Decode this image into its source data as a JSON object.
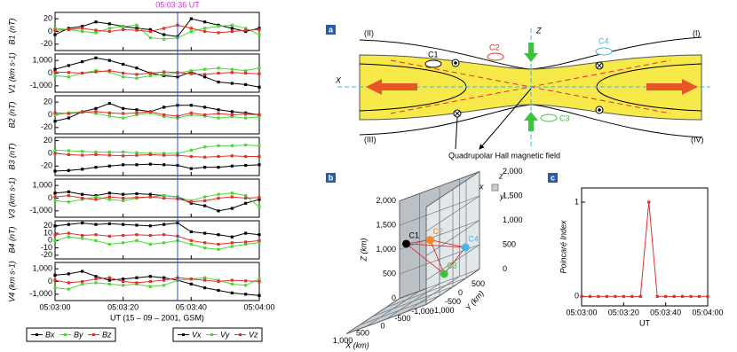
{
  "chart_data": [
    {
      "type": "line",
      "ylabel": "B1 (nT)",
      "x": [
        "05:03:00",
        "05:03:04",
        "05:03:08",
        "05:03:12",
        "05:03:16",
        "05:03:20",
        "05:03:24",
        "05:03:28",
        "05:03:32",
        "05:03:36",
        "05:03:40",
        "05:03:44",
        "05:03:48",
        "05:03:52",
        "05:03:56",
        "05:04:00"
      ],
      "xlim": [
        "05:03:00",
        "05:04:00"
      ],
      "ylim": [
        -30,
        30
      ],
      "yticks": [
        -20,
        0,
        20
      ],
      "marker": {
        "x": "05:03:36",
        "label": "05:03:36 UT",
        "label_color": "#d62fd6",
        "line_color": "#2a4bd7"
      },
      "series": [
        {
          "name": "Bx",
          "color": "#000000",
          "values": [
            -5,
            5,
            8,
            15,
            12,
            8,
            5,
            3,
            -5,
            -8,
            20,
            15,
            10,
            5,
            0,
            5
          ]
        },
        {
          "name": "By",
          "color": "#4fd43a",
          "values": [
            5,
            3,
            0,
            -2,
            5,
            8,
            10,
            -10,
            -12,
            -10,
            0,
            5,
            8,
            10,
            5,
            -5
          ]
        },
        {
          "name": "Bz",
          "color": "#e0302a",
          "values": [
            2,
            3,
            5,
            2,
            0,
            3,
            2,
            0,
            5,
            10,
            5,
            0,
            -2,
            0,
            2,
            3
          ]
        }
      ]
    },
    {
      "type": "line",
      "ylabel": "V1 (km s-1)",
      "x": [
        "05:03:00",
        "05:03:04",
        "05:03:08",
        "05:03:12",
        "05:03:16",
        "05:03:20",
        "05:03:24",
        "05:03:28",
        "05:03:32",
        "05:03:36",
        "05:03:40",
        "05:03:44",
        "05:03:48",
        "05:03:52",
        "05:03:56",
        "05:04:00"
      ],
      "xlim": [
        "05:03:00",
        "05:04:00"
      ],
      "ylim": [
        -1500,
        1500
      ],
      "yticks": [
        {
          "value": -1000,
          "label": "-1,000"
        },
        0,
        {
          "value": 1000,
          "label": "1,000"
        }
      ],
      "series": [
        {
          "name": "Vx",
          "color": "#000000",
          "values": [
            300,
            600,
            900,
            1200,
            1000,
            700,
            400,
            0,
            -200,
            -300,
            100,
            -300,
            -700,
            -800,
            -900,
            -1100
          ]
        },
        {
          "name": "Vy",
          "color": "#4fd43a",
          "values": [
            -200,
            -300,
            0,
            200,
            100,
            -300,
            -400,
            -200,
            -100,
            0,
            200,
            300,
            400,
            300,
            200,
            400
          ]
        },
        {
          "name": "Vz",
          "color": "#e0302a",
          "values": [
            100,
            50,
            0,
            100,
            200,
            0,
            -100,
            0,
            100,
            50,
            -50,
            -100,
            0,
            50,
            0,
            -50
          ]
        }
      ]
    },
    {
      "type": "line",
      "ylabel": "B2 (nT)",
      "x": [
        "05:03:00",
        "05:03:04",
        "05:03:08",
        "05:03:12",
        "05:03:16",
        "05:03:20",
        "05:03:24",
        "05:03:28",
        "05:03:32",
        "05:03:36",
        "05:03:40",
        "05:03:44",
        "05:03:48",
        "05:03:52",
        "05:03:56",
        "05:04:00"
      ],
      "xlim": [
        "05:03:00",
        "05:04:00"
      ],
      "ylim": [
        -30,
        30
      ],
      "yticks": [
        -20,
        0,
        20
      ],
      "series": [
        {
          "name": "Bx",
          "color": "#000000",
          "values": [
            -10,
            -5,
            5,
            10,
            18,
            10,
            8,
            5,
            12,
            15,
            15,
            12,
            8,
            5,
            3,
            0
          ]
        },
        {
          "name": "By",
          "color": "#4fd43a",
          "values": [
            0,
            3,
            5,
            2,
            -2,
            -5,
            0,
            3,
            -3,
            -5,
            0,
            -2,
            -5,
            -3,
            -5,
            -3
          ]
        },
        {
          "name": "Bz",
          "color": "#e0302a",
          "values": [
            3,
            2,
            4,
            5,
            3,
            2,
            3,
            5,
            0,
            -2,
            3,
            0,
            2,
            0,
            1,
            0
          ]
        }
      ]
    },
    {
      "type": "line",
      "ylabel": "B3 (nT)",
      "x": [
        "05:03:00",
        "05:03:04",
        "05:03:08",
        "05:03:12",
        "05:03:16",
        "05:03:20",
        "05:03:24",
        "05:03:28",
        "05:03:32",
        "05:03:36",
        "05:03:40",
        "05:03:44",
        "05:03:48",
        "05:03:52",
        "05:03:56",
        "05:04:00"
      ],
      "xlim": [
        "05:03:00",
        "05:04:00"
      ],
      "ylim": [
        -35,
        25
      ],
      "yticks": [
        -20,
        0,
        20
      ],
      "series": [
        {
          "name": "Bx",
          "color": "#000000",
          "values": [
            -28,
            -27,
            -25,
            -22,
            -20,
            -18,
            -18,
            -17,
            -18,
            -19,
            -24,
            -22,
            -22,
            -20,
            -19,
            -18
          ]
        },
        {
          "name": "By",
          "color": "#4fd43a",
          "values": [
            5,
            4,
            3,
            2,
            2,
            2,
            1,
            0,
            0,
            0,
            5,
            10,
            12,
            12,
            13,
            12
          ]
        },
        {
          "name": "Bz",
          "color": "#e0302a",
          "values": [
            0,
            -2,
            -3,
            -2,
            -3,
            -4,
            -3,
            -2,
            -3,
            -3,
            -5,
            -6,
            -5,
            -4,
            -5,
            -5
          ]
        }
      ]
    },
    {
      "type": "line",
      "ylabel": "V3 (km s-1)",
      "x": [
        "05:03:00",
        "05:03:04",
        "05:03:08",
        "05:03:12",
        "05:03:16",
        "05:03:20",
        "05:03:24",
        "05:03:28",
        "05:03:32",
        "05:03:36",
        "05:03:40",
        "05:03:44",
        "05:03:48",
        "05:03:52",
        "05:03:56",
        "05:04:00"
      ],
      "xlim": [
        "05:03:00",
        "05:04:00"
      ],
      "ylim": [
        -1500,
        1500
      ],
      "yticks": [
        {
          "value": -1000,
          "label": "-1,000"
        },
        0,
        {
          "value": 1000,
          "label": "1,000"
        }
      ],
      "series": [
        {
          "name": "Vx",
          "color": "#000000",
          "values": [
            400,
            500,
            300,
            200,
            400,
            300,
            350,
            300,
            200,
            100,
            -400,
            -600,
            -1000,
            -800,
            -400,
            -100
          ]
        },
        {
          "name": "Vy",
          "color": "#4fd43a",
          "values": [
            -200,
            -300,
            -100,
            100,
            -100,
            -200,
            0,
            100,
            200,
            100,
            -200,
            100,
            300,
            400,
            200,
            -700
          ]
        },
        {
          "name": "Vz",
          "color": "#e0302a",
          "values": [
            100,
            200,
            0,
            -100,
            100,
            0,
            50,
            100,
            0,
            -50,
            -300,
            -200,
            0,
            100,
            0,
            50
          ]
        }
      ]
    },
    {
      "type": "line",
      "ylabel": "B4 (nT)",
      "x": [
        "05:03:00",
        "05:03:04",
        "05:03:08",
        "05:03:12",
        "05:03:16",
        "05:03:20",
        "05:03:24",
        "05:03:28",
        "05:03:32",
        "05:03:36",
        "05:03:40",
        "05:03:44",
        "05:03:48",
        "05:03:52",
        "05:03:56",
        "05:04:00"
      ],
      "xlim": [
        "05:03:00",
        "05:04:00"
      ],
      "ylim": [
        -25,
        27
      ],
      "yticks": [
        -20,
        -10,
        0,
        10,
        20
      ],
      "series": [
        {
          "name": "Bx",
          "color": "#000000",
          "values": [
            20,
            22,
            24,
            22,
            23,
            22,
            21,
            20,
            22,
            24,
            12,
            10,
            8,
            5,
            10,
            8
          ]
        },
        {
          "name": "By",
          "color": "#4fd43a",
          "values": [
            0,
            5,
            3,
            0,
            -5,
            -3,
            0,
            -5,
            -3,
            0,
            -5,
            -10,
            -12,
            -8,
            -5,
            -3
          ]
        },
        {
          "name": "Bz",
          "color": "#e0302a",
          "values": [
            8,
            10,
            7,
            8,
            6,
            7,
            8,
            7,
            8,
            6,
            0,
            -3,
            -5,
            -3,
            -2,
            0
          ]
        }
      ]
    },
    {
      "type": "line",
      "ylabel": "V4 (km s-1)",
      "xlabel": "UT (15 – 09 – 2001, GSM)",
      "x": [
        "05:03:00",
        "05:03:04",
        "05:03:08",
        "05:03:12",
        "05:03:16",
        "05:03:20",
        "05:03:24",
        "05:03:28",
        "05:03:32",
        "05:03:36",
        "05:03:40",
        "05:03:44",
        "05:03:48",
        "05:03:52",
        "05:03:56",
        "05:04:00"
      ],
      "xlim": [
        "05:03:00",
        "05:04:00"
      ],
      "xticks": [
        "05:03:00",
        "05:03:20",
        "05:03:40",
        "05:04:00"
      ],
      "ylim": [
        -1500,
        1500
      ],
      "yticks": [
        {
          "value": -1000,
          "label": "-1,000"
        },
        0,
        {
          "value": 1000,
          "label": "1,000"
        }
      ],
      "series": [
        {
          "name": "Vx",
          "color": "#000000",
          "values": [
            500,
            600,
            800,
            400,
            100,
            200,
            300,
            400,
            300,
            100,
            -200,
            -500,
            -700,
            -900,
            -1000,
            -1100
          ]
        },
        {
          "name": "Vy",
          "color": "#4fd43a",
          "values": [
            -500,
            -600,
            -200,
            -100,
            -200,
            -300,
            -200,
            -400,
            -300,
            100,
            200,
            300,
            100,
            -200,
            -300,
            200
          ]
        },
        {
          "name": "Vz",
          "color": "#e0302a",
          "values": [
            100,
            -100,
            0,
            200,
            300,
            0,
            -100,
            0,
            100,
            300,
            200,
            100,
            0,
            100,
            50,
            0
          ]
        }
      ]
    },
    {
      "type": "scatter3d",
      "tag": "b",
      "xlabel": "X (km)",
      "ylabel": "Y (km)",
      "zlabel": "Z (km)",
      "labels": [
        "C1",
        "C2",
        "C3",
        "C4"
      ],
      "colors": [
        "#000000",
        "#f08a2c",
        "#3cc23c",
        "#4ab4e8"
      ],
      "x": [
        300,
        -100,
        -250,
        -650
      ],
      "y": [
        200,
        500,
        800,
        1000
      ],
      "z": [
        1200,
        1050,
        200,
        550
      ],
      "xlim": [
        -1000,
        1000
      ],
      "ylim": [
        -1000,
        1000
      ],
      "zlim": [
        0,
        2000
      ],
      "xticks": [
        {
          "value": 1000,
          "label": "1,000"
        },
        500,
        0,
        -500,
        {
          "value": -1000,
          "label": "-1,000"
        }
      ],
      "yticks": [
        {
          "value": -1000,
          "label": "-1,000"
        },
        -500,
        0,
        500
      ],
      "zticks": [
        0,
        500,
        {
          "value": 1000,
          "label": "1,000"
        },
        {
          "value": 1500,
          "label": "1,500"
        },
        {
          "value": 2000,
          "label": "2,000"
        }
      ],
      "orientation_labels": [
        "z",
        "x",
        "y"
      ]
    },
    {
      "type": "line",
      "tag": "c",
      "xlabel": "UT",
      "ylabel": "Poincaré Index",
      "color": "#e0302a",
      "x": [
        "05:03:00",
        "05:03:04",
        "05:03:08",
        "05:03:12",
        "05:03:16",
        "05:03:20",
        "05:03:24",
        "05:03:28",
        "05:03:32",
        "05:03:36",
        "05:03:40",
        "05:03:44",
        "05:03:48",
        "05:03:52",
        "05:03:56",
        "05:04:00"
      ],
      "values": [
        0,
        0,
        0,
        0,
        0,
        0,
        0,
        0,
        1,
        0,
        0,
        0,
        0,
        0,
        0,
        0
      ],
      "xlim": [
        "05:03:00",
        "05:04:00"
      ],
      "xticks": [
        "05:03:00",
        "05:03:20",
        "05:03:40",
        "05:04:00"
      ],
      "ylim": [
        -0.1,
        1.15
      ],
      "yticks": [
        0,
        1
      ]
    }
  ],
  "diagram": {
    "tag": "a",
    "regions": [
      "(II)",
      "(I)",
      "(III)",
      "(IV)"
    ],
    "spacecraft": [
      "C1",
      "C2",
      "C3",
      "C4"
    ],
    "axes": [
      "X",
      "Z"
    ],
    "caption": "Quadrupolar Hall magnetic field"
  }
}
